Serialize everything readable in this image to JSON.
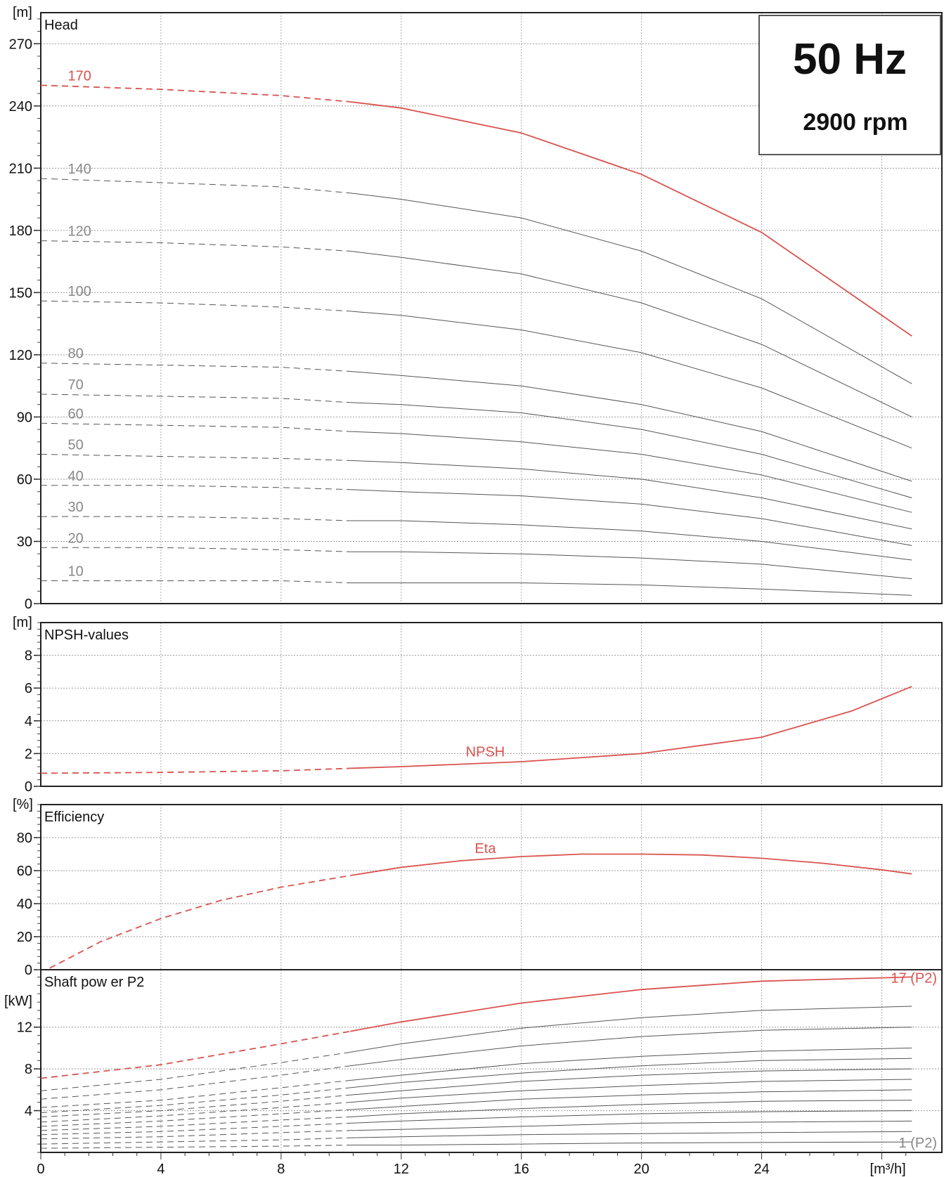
{
  "header": {
    "frequency": "50 Hz",
    "speed": "2900 rpm"
  },
  "colors": {
    "highlight": "#d9534f",
    "curve": "#555555",
    "label_grey": "#888888"
  },
  "chart_data": [
    {
      "type": "line",
      "title": "Head",
      "ylabel": "[m]",
      "xlabel": "[m³/h]",
      "xlim": [
        0,
        30
      ],
      "ylim": [
        0,
        285
      ],
      "yticks": [
        0,
        30,
        60,
        90,
        120,
        150,
        180,
        210,
        240,
        270
      ],
      "dashed_until_x": 10.3,
      "grid": true,
      "series": [
        {
          "name": "170",
          "highlight": true,
          "x": [
            0,
            4,
            8,
            10.3,
            12,
            16,
            20,
            24,
            29
          ],
          "y": [
            250,
            248,
            245,
            242,
            239,
            227,
            207,
            179,
            129
          ]
        },
        {
          "name": "140",
          "x": [
            0,
            4,
            8,
            10.3,
            12,
            16,
            20,
            24,
            29
          ],
          "y": [
            205,
            203,
            201,
            198,
            195,
            186,
            170,
            147,
            106
          ]
        },
        {
          "name": "120",
          "x": [
            0,
            4,
            8,
            10.3,
            12,
            16,
            20,
            24,
            29
          ],
          "y": [
            175,
            174,
            172,
            170,
            167,
            159,
            145,
            125,
            90
          ]
        },
        {
          "name": "100",
          "x": [
            0,
            4,
            8,
            10.3,
            12,
            16,
            20,
            24,
            29
          ],
          "y": [
            146,
            145,
            143,
            141,
            139,
            132,
            121,
            104,
            75
          ]
        },
        {
          "name": "80",
          "x": [
            0,
            4,
            8,
            10.3,
            12,
            16,
            20,
            24,
            29
          ],
          "y": [
            116,
            115,
            114,
            112,
            110,
            105,
            96,
            83,
            59
          ]
        },
        {
          "name": "70",
          "x": [
            0,
            4,
            8,
            10.3,
            12,
            16,
            20,
            24,
            29
          ],
          "y": [
            101,
            100,
            99,
            97,
            96,
            92,
            84,
            72,
            51
          ]
        },
        {
          "name": "60",
          "x": [
            0,
            4,
            8,
            10.3,
            12,
            16,
            20,
            24,
            29
          ],
          "y": [
            87,
            86,
            85,
            83,
            82,
            78,
            72,
            62,
            44
          ]
        },
        {
          "name": "50",
          "x": [
            0,
            4,
            8,
            10.3,
            12,
            16,
            20,
            24,
            29
          ],
          "y": [
            72,
            71,
            70,
            69,
            68,
            65,
            60,
            51,
            36
          ]
        },
        {
          "name": "40",
          "x": [
            0,
            4,
            8,
            10.3,
            12,
            16,
            20,
            24,
            29
          ],
          "y": [
            57,
            57,
            56,
            55,
            54,
            52,
            48,
            41,
            28
          ]
        },
        {
          "name": "30",
          "x": [
            0,
            4,
            8,
            10.3,
            12,
            16,
            20,
            24,
            29
          ],
          "y": [
            42,
            42,
            41,
            40,
            40,
            38,
            35,
            30,
            21
          ]
        },
        {
          "name": "20",
          "x": [
            0,
            4,
            8,
            10.3,
            12,
            16,
            20,
            24,
            29
          ],
          "y": [
            27,
            27,
            26,
            25,
            25,
            24,
            22,
            19,
            12
          ]
        },
        {
          "name": "10",
          "x": [
            0,
            4,
            8,
            10.3,
            12,
            16,
            20,
            24,
            29
          ],
          "y": [
            11,
            11,
            11,
            10,
            10,
            10,
            9,
            7,
            4
          ]
        }
      ]
    },
    {
      "type": "line",
      "title": "NPSH-values",
      "ylabel": "[m]",
      "xlim": [
        0,
        30
      ],
      "ylim": [
        0,
        10
      ],
      "yticks": [
        0,
        2,
        4,
        6,
        8
      ],
      "dashed_until_x": 10.3,
      "grid": true,
      "series": [
        {
          "name": "NPSH",
          "highlight": true,
          "x": [
            0,
            4,
            8,
            10.3,
            12,
            16,
            20,
            24,
            27,
            29
          ],
          "y": [
            0.8,
            0.85,
            0.95,
            1.1,
            1.2,
            1.5,
            2.0,
            3.0,
            4.6,
            6.1
          ]
        }
      ]
    },
    {
      "type": "line",
      "title": "Efficiency",
      "ylabel": "[%]",
      "xlim": [
        0,
        30
      ],
      "ylim": [
        0,
        100
      ],
      "yticks": [
        0,
        20,
        40,
        60,
        80
      ],
      "dashed_until_x": 10.3,
      "grid": true,
      "series": [
        {
          "name": "Eta",
          "highlight": true,
          "x": [
            0.3,
            2,
            4,
            6,
            8,
            10.3,
            12,
            14,
            16,
            18,
            20,
            22,
            24,
            26,
            28,
            29
          ],
          "y": [
            1,
            17,
            31,
            42,
            50,
            57,
            62,
            66,
            68.5,
            70,
            70,
            69.5,
            67.5,
            64.5,
            60.5,
            58
          ]
        }
      ]
    },
    {
      "type": "line",
      "title": "Shaft pow er P2",
      "ylabel": "[kW]",
      "xlim": [
        0,
        30
      ],
      "ylim": [
        0,
        17.5
      ],
      "yticks": [
        4,
        8,
        12
      ],
      "dashed_until_x": 10.3,
      "grid": true,
      "series": [
        {
          "name": "17 (P2)",
          "highlight": true,
          "x": [
            0,
            4,
            8,
            10.3,
            12,
            16,
            20,
            24,
            29
          ],
          "y": [
            7.1,
            8.4,
            10.4,
            11.6,
            12.5,
            14.3,
            15.6,
            16.4,
            16.8
          ]
        },
        {
          "x": [
            0,
            4,
            8,
            10.3,
            12,
            16,
            20,
            24,
            29
          ],
          "y": [
            5.9,
            7.0,
            8.6,
            9.6,
            10.4,
            11.9,
            12.9,
            13.6,
            14.0
          ]
        },
        {
          "x": [
            0,
            4,
            8,
            10.3,
            12,
            16,
            20,
            24,
            29
          ],
          "y": [
            5.1,
            6.0,
            7.4,
            8.3,
            8.9,
            10.2,
            11.1,
            11.7,
            12.0
          ]
        },
        {
          "x": [
            0,
            4,
            8,
            10.3,
            12,
            16,
            20,
            24,
            29
          ],
          "y": [
            4.3,
            5.0,
            6.2,
            6.9,
            7.4,
            8.5,
            9.2,
            9.7,
            10.0
          ]
        },
        {
          "x": [
            0,
            4,
            8,
            10.3,
            12,
            16,
            20,
            24,
            29
          ],
          "y": [
            3.8,
            4.5,
            5.5,
            6.2,
            6.7,
            7.6,
            8.3,
            8.8,
            9.0
          ]
        },
        {
          "x": [
            0,
            4,
            8,
            10.3,
            12,
            16,
            20,
            24,
            29
          ],
          "y": [
            3.4,
            4.0,
            4.9,
            5.5,
            5.9,
            6.8,
            7.4,
            7.8,
            8.0
          ]
        },
        {
          "x": [
            0,
            4,
            8,
            10.3,
            12,
            16,
            20,
            24,
            29
          ],
          "y": [
            2.9,
            3.5,
            4.3,
            4.8,
            5.2,
            5.9,
            6.4,
            6.8,
            7.0
          ]
        },
        {
          "x": [
            0,
            4,
            8,
            10.3,
            12,
            16,
            20,
            24,
            29
          ],
          "y": [
            2.5,
            3.0,
            3.7,
            4.1,
            4.4,
            5.1,
            5.5,
            5.8,
            6.0
          ]
        },
        {
          "x": [
            0,
            4,
            8,
            10.3,
            12,
            16,
            20,
            24,
            29
          ],
          "y": [
            2.1,
            2.5,
            3.1,
            3.4,
            3.7,
            4.2,
            4.6,
            4.9,
            5.0
          ]
        },
        {
          "x": [
            0,
            4,
            8,
            10.3,
            12,
            16,
            20,
            24,
            29
          ],
          "y": [
            1.7,
            2.0,
            2.5,
            2.8,
            3.0,
            3.4,
            3.7,
            3.9,
            4.0
          ]
        },
        {
          "x": [
            0,
            4,
            8,
            10.3,
            12,
            16,
            20,
            24,
            29
          ],
          "y": [
            1.3,
            1.5,
            1.9,
            2.1,
            2.2,
            2.5,
            2.8,
            2.9,
            3.0
          ]
        },
        {
          "x": [
            0,
            4,
            8,
            10.3,
            12,
            16,
            20,
            24,
            29
          ],
          "y": [
            0.8,
            1.0,
            1.2,
            1.4,
            1.5,
            1.7,
            1.8,
            1.9,
            2.0
          ]
        },
        {
          "name": "1 (P2)",
          "x": [
            0,
            4,
            8,
            10.3,
            12,
            16,
            20,
            24,
            29
          ],
          "y": [
            0.4,
            0.5,
            0.6,
            0.7,
            0.7,
            0.8,
            0.9,
            0.95,
            1.0
          ]
        }
      ]
    }
  ],
  "x_axis": {
    "ticks": [
      0,
      4,
      8,
      12,
      16,
      20,
      24
    ],
    "unit": "[m³/h]"
  }
}
